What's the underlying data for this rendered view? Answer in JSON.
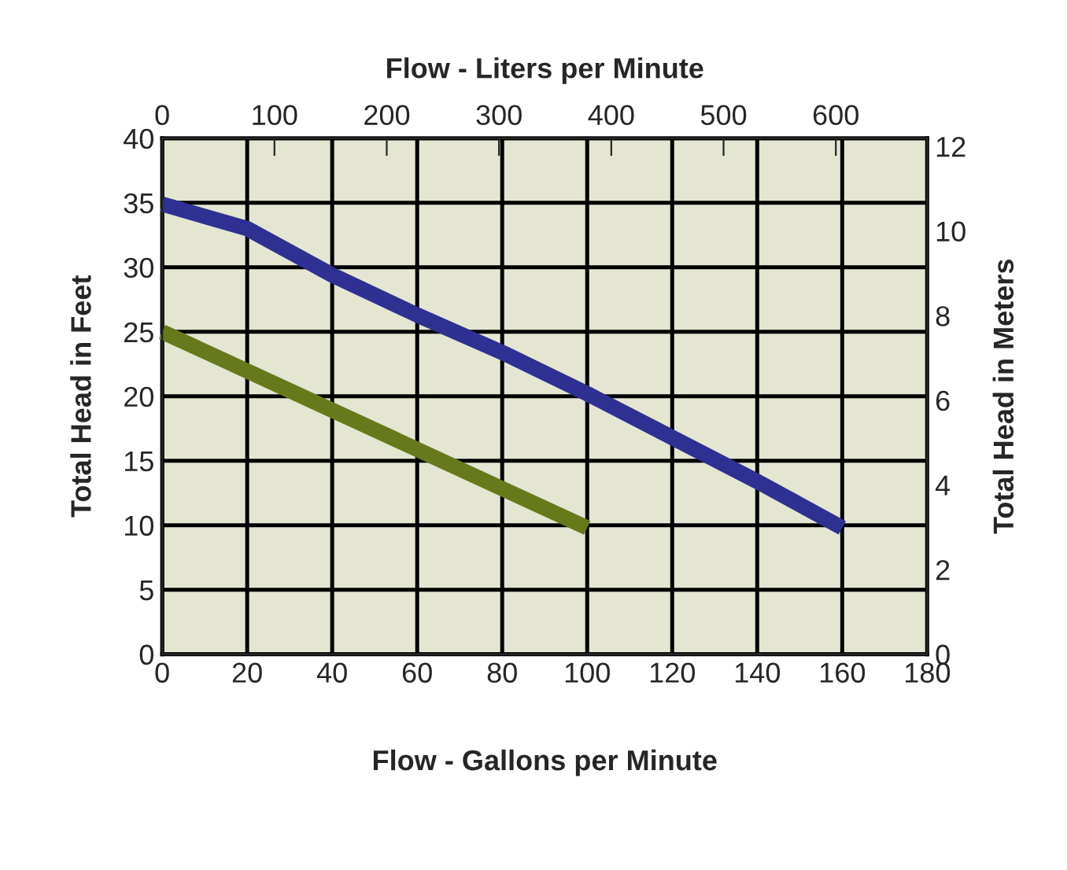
{
  "chart_data": {
    "type": "line",
    "xlabel": "Flow - Gallons per Minute",
    "ylabel": "Total Head in Feet",
    "y2label": "Total Head in Meters",
    "x2label": "Flow - Liters per Minute",
    "xlim": [
      0,
      180
    ],
    "xticks": [
      0,
      20,
      40,
      60,
      80,
      100,
      120,
      140,
      160,
      180
    ],
    "ylim": [
      0,
      40
    ],
    "yticks": [
      0,
      5,
      10,
      15,
      20,
      25,
      30,
      35,
      40
    ],
    "y2lim": [
      0,
      12.19
    ],
    "y2ticks": [
      0,
      2,
      4,
      6,
      8,
      10,
      12
    ],
    "x2lim": [
      0,
      681.4
    ],
    "x2ticks": [
      0,
      100,
      200,
      300,
      400,
      500,
      600
    ],
    "grid": true,
    "legend": false,
    "series": [
      {
        "color": "#667a1c",
        "x": [
          0,
          100
        ],
        "values": [
          25,
          9.8
        ]
      },
      {
        "color": "#2e3192",
        "x": [
          0,
          20,
          40,
          60,
          80,
          100,
          120,
          140,
          160
        ],
        "values": [
          34.9,
          33.0,
          29.4,
          26.3,
          23.4,
          20.2,
          16.8,
          13.4,
          9.8
        ]
      }
    ]
  }
}
